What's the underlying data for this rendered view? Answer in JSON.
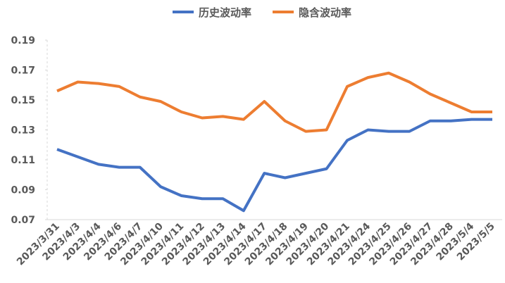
{
  "chart_data": {
    "type": "line",
    "categories": [
      "2023/3/31",
      "2023/4/3",
      "2023/4/4",
      "2023/4/6",
      "2023/4/7",
      "2023/4/10",
      "2023/4/11",
      "2023/4/12",
      "2023/4/13",
      "2023/4/14",
      "2023/4/17",
      "2023/4/18",
      "2023/4/19",
      "2023/4/20",
      "2023/4/21",
      "2023/4/24",
      "2023/4/25",
      "2023/4/26",
      "2023/4/27",
      "2023/4/28",
      "2023/5/4",
      "2023/5/5"
    ],
    "series": [
      {
        "name": "历史波动率",
        "color": "#4472c4",
        "values": [
          0.117,
          0.112,
          0.107,
          0.105,
          0.105,
          0.092,
          0.086,
          0.084,
          0.084,
          0.076,
          0.101,
          0.098,
          0.101,
          0.104,
          0.123,
          0.13,
          0.129,
          0.129,
          0.136,
          0.136,
          0.137,
          0.137
        ]
      },
      {
        "name": "隐含波动率",
        "color": "#ed7d31",
        "values": [
          0.156,
          0.162,
          0.161,
          0.159,
          0.152,
          0.149,
          0.142,
          0.138,
          0.139,
          0.137,
          0.149,
          0.136,
          0.129,
          0.13,
          0.159,
          0.165,
          0.168,
          0.162,
          0.154,
          0.148,
          0.142,
          0.142
        ]
      }
    ],
    "ylim": [
      0.07,
      0.19
    ],
    "yticks": [
      0.07,
      0.09,
      0.11,
      0.13,
      0.15,
      0.17,
      0.19
    ],
    "grid": false,
    "legend": "top"
  }
}
